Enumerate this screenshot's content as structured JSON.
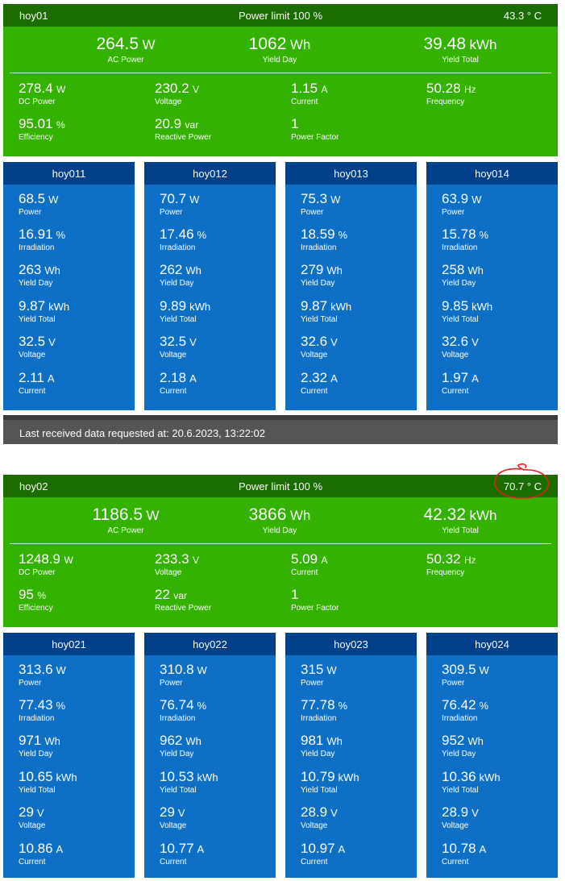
{
  "inverters": [
    {
      "name": "hoy01",
      "power_limit": "Power limit 100 %",
      "temperature": "43.3 ° C",
      "ac_power": {
        "value": "264.5",
        "unit": "W",
        "label": "AC Power"
      },
      "yield_day": {
        "value": "1062",
        "unit": "Wh",
        "label": "Yield Day"
      },
      "yield_total": {
        "value": "39.48",
        "unit": "kWh",
        "label": "Yield Total"
      },
      "dc_power": {
        "value": "278.4",
        "unit": "W",
        "label": "DC Power"
      },
      "voltage": {
        "value": "230.2",
        "unit": "V",
        "label": "Voltage"
      },
      "current": {
        "value": "1.15",
        "unit": "A",
        "label": "Current"
      },
      "frequency": {
        "value": "50.28",
        "unit": "Hz",
        "label": "Frequency"
      },
      "efficiency": {
        "value": "95.01",
        "unit": "%",
        "label": "Efficiency"
      },
      "reactive_power": {
        "value": "20.9",
        "unit": "var",
        "label": "Reactive Power"
      },
      "power_factor": {
        "value": "1",
        "unit": "",
        "label": "Power Factor"
      },
      "strings": [
        {
          "name": "hoy011",
          "fields": [
            {
              "value": "68.5",
              "unit": "W",
              "label": "Power"
            },
            {
              "value": "16.91",
              "unit": "%",
              "label": "Irradiation"
            },
            {
              "value": "263",
              "unit": "Wh",
              "label": "Yield Day"
            },
            {
              "value": "9.87",
              "unit": "kWh",
              "label": "Yield Total"
            },
            {
              "value": "32.5",
              "unit": "V",
              "label": "Voltage"
            },
            {
              "value": "2.11",
              "unit": "A",
              "label": "Current"
            }
          ]
        },
        {
          "name": "hoy012",
          "fields": [
            {
              "value": "70.7",
              "unit": "W",
              "label": "Power"
            },
            {
              "value": "17.46",
              "unit": "%",
              "label": "Irradiation"
            },
            {
              "value": "262",
              "unit": "Wh",
              "label": "Yield Day"
            },
            {
              "value": "9.89",
              "unit": "kWh",
              "label": "Yield Total"
            },
            {
              "value": "32.5",
              "unit": "V",
              "label": "Voltage"
            },
            {
              "value": "2.18",
              "unit": "A",
              "label": "Current"
            }
          ]
        },
        {
          "name": "hoy013",
          "fields": [
            {
              "value": "75.3",
              "unit": "W",
              "label": "Power"
            },
            {
              "value": "18.59",
              "unit": "%",
              "label": "Irradiation"
            },
            {
              "value": "279",
              "unit": "Wh",
              "label": "Yield Day"
            },
            {
              "value": "9.87",
              "unit": "kWh",
              "label": "Yield Total"
            },
            {
              "value": "32.6",
              "unit": "V",
              "label": "Voltage"
            },
            {
              "value": "2.32",
              "unit": "A",
              "label": "Current"
            }
          ]
        },
        {
          "name": "hoy014",
          "fields": [
            {
              "value": "63.9",
              "unit": "W",
              "label": "Power"
            },
            {
              "value": "15.78",
              "unit": "%",
              "label": "Irradiation"
            },
            {
              "value": "258",
              "unit": "Wh",
              "label": "Yield Day"
            },
            {
              "value": "9.85",
              "unit": "kWh",
              "label": "Yield Total"
            },
            {
              "value": "32.6",
              "unit": "V",
              "label": "Voltage"
            },
            {
              "value": "1.97",
              "unit": "A",
              "label": "Current"
            }
          ]
        }
      ],
      "footer": "Last received data requested at: 20.6.2023, 13:22:02"
    },
    {
      "name": "hoy02",
      "power_limit": "Power limit 100 %",
      "temperature": "70.7 ° C",
      "ac_power": {
        "value": "1186.5",
        "unit": "W",
        "label": "AC Power"
      },
      "yield_day": {
        "value": "3866",
        "unit": "Wh",
        "label": "Yield Day"
      },
      "yield_total": {
        "value": "42.32",
        "unit": "kWh",
        "label": "Yield Total"
      },
      "dc_power": {
        "value": "1248.9",
        "unit": "W",
        "label": "DC Power"
      },
      "voltage": {
        "value": "233.3",
        "unit": "V",
        "label": "Voltage"
      },
      "current": {
        "value": "5.09",
        "unit": "A",
        "label": "Current"
      },
      "frequency": {
        "value": "50.32",
        "unit": "Hz",
        "label": "Frequency"
      },
      "efficiency": {
        "value": "95",
        "unit": "%",
        "label": "Efficiency"
      },
      "reactive_power": {
        "value": "22",
        "unit": "var",
        "label": "Reactive Power"
      },
      "power_factor": {
        "value": "1",
        "unit": "",
        "label": "Power Factor"
      },
      "strings": [
        {
          "name": "hoy021",
          "fields": [
            {
              "value": "313.6",
              "unit": "W",
              "label": "Power"
            },
            {
              "value": "77.43",
              "unit": "%",
              "label": "Irradiation"
            },
            {
              "value": "971",
              "unit": "Wh",
              "label": "Yield Day"
            },
            {
              "value": "10.65",
              "unit": "kWh",
              "label": "Yield Total"
            },
            {
              "value": "29",
              "unit": "V",
              "label": "Voltage"
            },
            {
              "value": "10.86",
              "unit": "A",
              "label": "Current"
            }
          ]
        },
        {
          "name": "hoy022",
          "fields": [
            {
              "value": "310.8",
              "unit": "W",
              "label": "Power"
            },
            {
              "value": "76.74",
              "unit": "%",
              "label": "Irradiation"
            },
            {
              "value": "962",
              "unit": "Wh",
              "label": "Yield Day"
            },
            {
              "value": "10.53",
              "unit": "kWh",
              "label": "Yield Total"
            },
            {
              "value": "29",
              "unit": "V",
              "label": "Voltage"
            },
            {
              "value": "10.77",
              "unit": "A",
              "label": "Current"
            }
          ]
        },
        {
          "name": "hoy023",
          "fields": [
            {
              "value": "315",
              "unit": "W",
              "label": "Power"
            },
            {
              "value": "77.78",
              "unit": "%",
              "label": "Irradiation"
            },
            {
              "value": "981",
              "unit": "Wh",
              "label": "Yield Day"
            },
            {
              "value": "10.79",
              "unit": "kWh",
              "label": "Yield Total"
            },
            {
              "value": "28.9",
              "unit": "V",
              "label": "Voltage"
            },
            {
              "value": "10.97",
              "unit": "A",
              "label": "Current"
            }
          ]
        },
        {
          "name": "hoy024",
          "fields": [
            {
              "value": "309.5",
              "unit": "W",
              "label": "Power"
            },
            {
              "value": "76.42",
              "unit": "%",
              "label": "Irradiation"
            },
            {
              "value": "952",
              "unit": "Wh",
              "label": "Yield Day"
            },
            {
              "value": "10.36",
              "unit": "kWh",
              "label": "Yield Total"
            },
            {
              "value": "28.9",
              "unit": "V",
              "label": "Voltage"
            },
            {
              "value": "10.78",
              "unit": "A",
              "label": "Current"
            }
          ]
        }
      ]
    }
  ],
  "colors": {
    "header_green": "#1a6b00",
    "summary_green": "#33b200",
    "string_header_blue": "#003f8a",
    "string_body_blue": "#0e6fc7",
    "footer_gray": "#555555",
    "annotation_red": "#e0201c"
  }
}
